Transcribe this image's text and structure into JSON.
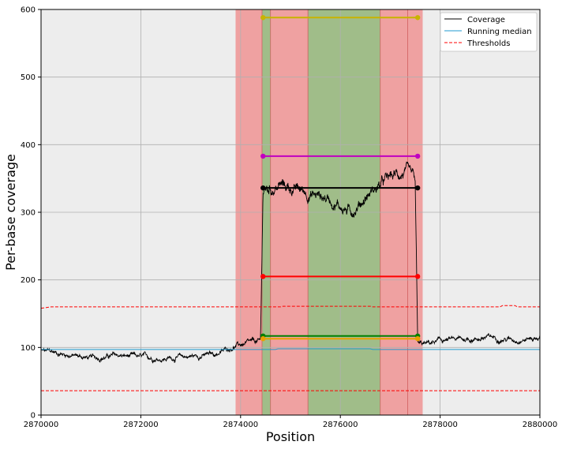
{
  "chart_data": {
    "type": "line",
    "xlabel": "Position",
    "ylabel": "Per-base coverage",
    "xlim": [
      2870000,
      2880000
    ],
    "ylim": [
      0,
      600
    ],
    "x_ticks": [
      2870000,
      2872000,
      2874000,
      2876000,
      2878000,
      2880000
    ],
    "x_tick_labels": [
      "2870000",
      "2872000",
      "2874000",
      "2876000",
      "2878000",
      "2880000"
    ],
    "y_ticks": [
      0,
      100,
      200,
      300,
      400,
      500,
      600
    ],
    "y_tick_labels": [
      "0",
      "100",
      "200",
      "300",
      "400",
      "500",
      "600"
    ],
    "grid": true,
    "legend_position": "top-right",
    "legend": [
      {
        "label": "Coverage",
        "color": "#000000",
        "style": "solid"
      },
      {
        "label": "Running median",
        "color": "#1f9bd0",
        "style": "solid"
      },
      {
        "label": "Thresholds",
        "color": "#ff0000",
        "style": "dashed"
      }
    ],
    "shaded_regions": [
      {
        "x0": 2873900,
        "x1": 2877650,
        "color": "#f08080"
      },
      {
        "x0": 2874430,
        "x1": 2874600,
        "color": "#7fc97f"
      },
      {
        "x0": 2875350,
        "x1": 2876800,
        "color": "#7fc97f"
      }
    ],
    "region_boundaries": [
      2874430,
      2874600,
      2875350,
      2876800,
      2877350
    ],
    "coverage_profile": [
      {
        "x": 2870000,
        "y": 95
      },
      {
        "x": 2870500,
        "y": 90
      },
      {
        "x": 2871000,
        "y": 84
      },
      {
        "x": 2871500,
        "y": 88
      },
      {
        "x": 2872000,
        "y": 85
      },
      {
        "x": 2872500,
        "y": 84
      },
      {
        "x": 2873000,
        "y": 87
      },
      {
        "x": 2873500,
        "y": 90
      },
      {
        "x": 2873900,
        "y": 103
      },
      {
        "x": 2874400,
        "y": 108
      },
      {
        "x": 2874450,
        "y": 330
      },
      {
        "x": 2874800,
        "y": 340
      },
      {
        "x": 2875300,
        "y": 330
      },
      {
        "x": 2875800,
        "y": 320
      },
      {
        "x": 2876200,
        "y": 300
      },
      {
        "x": 2876600,
        "y": 330
      },
      {
        "x": 2877000,
        "y": 350
      },
      {
        "x": 2877300,
        "y": 360
      },
      {
        "x": 2877500,
        "y": 340
      },
      {
        "x": 2877550,
        "y": 100
      },
      {
        "x": 2878000,
        "y": 110
      },
      {
        "x": 2878500,
        "y": 112
      },
      {
        "x": 2879000,
        "y": 115
      },
      {
        "x": 2879500,
        "y": 112
      },
      {
        "x": 2880000,
        "y": 115
      }
    ],
    "running_median": [
      {
        "x": 2870000,
        "y": 97
      },
      {
        "x": 2874700,
        "y": 97
      },
      {
        "x": 2874750,
        "y": 98
      },
      {
        "x": 2876600,
        "y": 98
      },
      {
        "x": 2876650,
        "y": 97
      },
      {
        "x": 2880000,
        "y": 97
      }
    ],
    "upper_threshold": [
      {
        "x": 2870000,
        "y": 158
      },
      {
        "x": 2870200,
        "y": 160
      },
      {
        "x": 2874800,
        "y": 160
      },
      {
        "x": 2874850,
        "y": 161
      },
      {
        "x": 2876600,
        "y": 161
      },
      {
        "x": 2876650,
        "y": 160
      },
      {
        "x": 2879200,
        "y": 160
      },
      {
        "x": 2879250,
        "y": 162
      },
      {
        "x": 2879500,
        "y": 162
      },
      {
        "x": 2879550,
        "y": 160
      },
      {
        "x": 2880000,
        "y": 160
      }
    ],
    "lower_threshold": [
      {
        "x": 2870000,
        "y": 36
      },
      {
        "x": 2880000,
        "y": 36
      }
    ],
    "level_segments": [
      {
        "x0": 2874450,
        "x1": 2877550,
        "y": 588,
        "color": "#c8b400"
      },
      {
        "x0": 2874450,
        "x1": 2877550,
        "y": 383,
        "color": "#c000c0"
      },
      {
        "x0": 2874450,
        "x1": 2877550,
        "y": 336,
        "color": "#000000"
      },
      {
        "x0": 2874450,
        "x1": 2877550,
        "y": 205,
        "color": "#ff0000"
      },
      {
        "x0": 2874450,
        "x1": 2877550,
        "y": 117,
        "color": "#008000"
      },
      {
        "x0": 2874450,
        "x1": 2877550,
        "y": 113,
        "color": "#e8a000"
      }
    ]
  }
}
